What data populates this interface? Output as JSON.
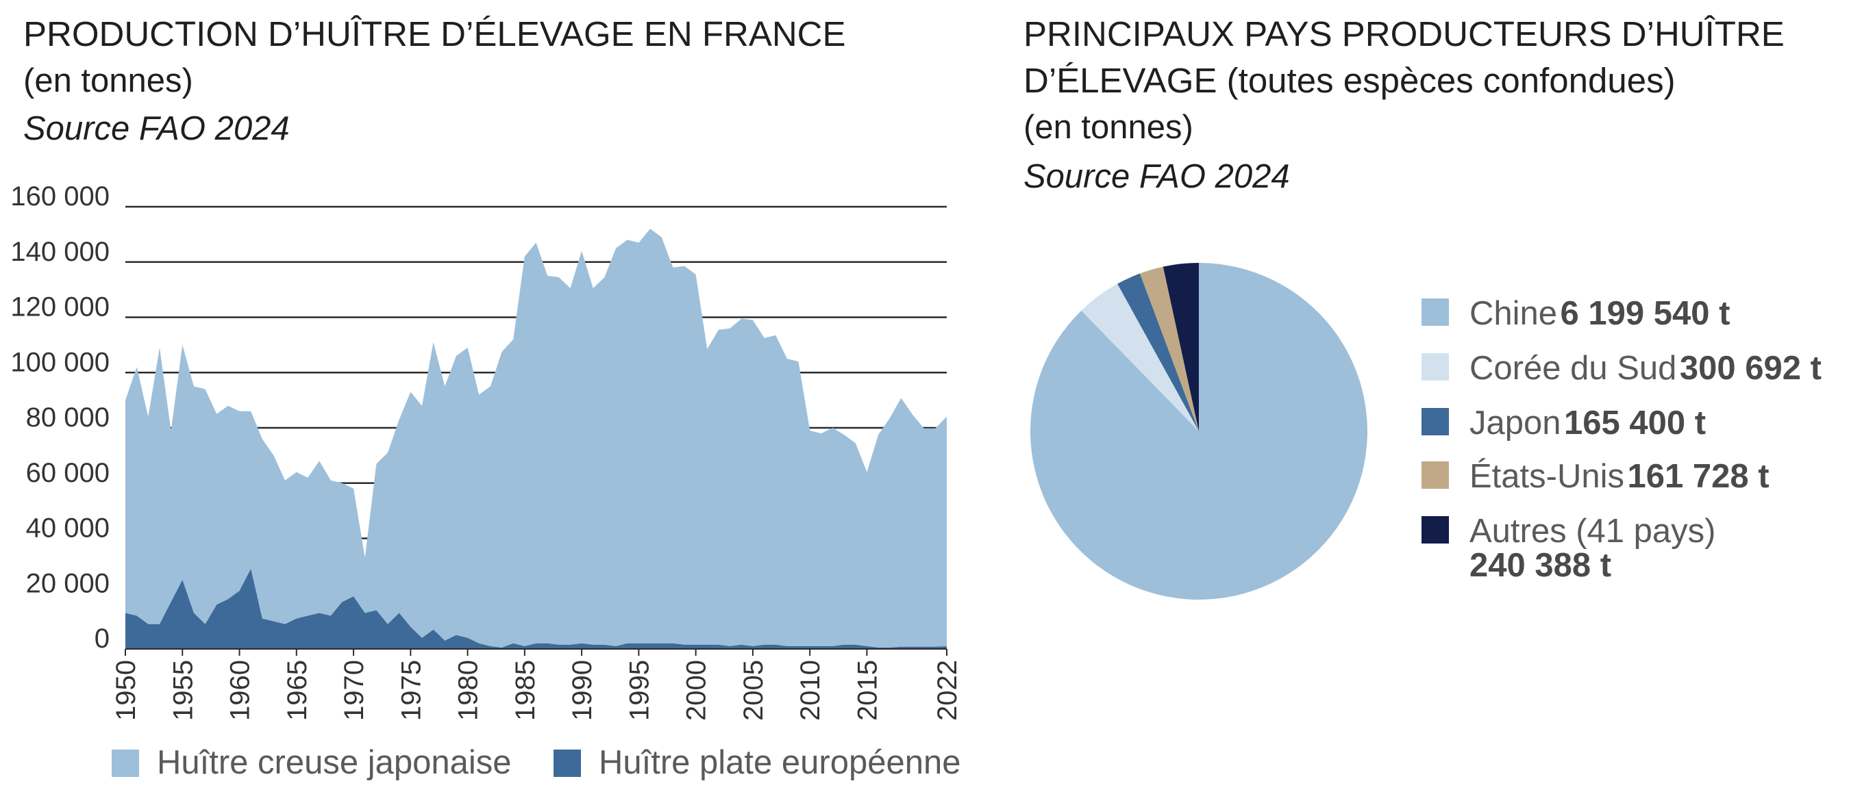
{
  "left": {
    "title": "PRODUCTION D’HUÎTRE D’ÉLEVAGE EN FRANCE",
    "subtitle": "(en tonnes)",
    "source": "Source FAO 2024"
  },
  "right": {
    "title_line1": "PRINCIPAUX PAYS PRODUCTEURS D’HUÎTRE",
    "title_line2": "D’ÉLEVAGE (toutes espèces confondues)",
    "subtitle": "(en tonnes)",
    "source": "Source FAO 2024"
  },
  "chart_data": [
    {
      "type": "area",
      "stacked": true,
      "ylim": [
        0,
        160000
      ],
      "yticks": [
        0,
        20000,
        40000,
        60000,
        80000,
        100000,
        120000,
        140000,
        160000
      ],
      "ytick_labels": [
        "0",
        "20 000",
        "40 000",
        "60 000",
        "80 000",
        "100 000",
        "120 000",
        "140 000",
        "160 000"
      ],
      "xlim": [
        1950,
        2022
      ],
      "xticks": [
        1950,
        1955,
        1960,
        1965,
        1970,
        1975,
        1980,
        1985,
        1990,
        1995,
        2000,
        2005,
        2010,
        2015,
        2022
      ],
      "xtick_labels": [
        "1950",
        "1955",
        "1960",
        "1965",
        "1970",
        "1975",
        "1980",
        "1985",
        "1990",
        "1995",
        "2000",
        "2005",
        "2010",
        "2015",
        "2022"
      ],
      "grid": true,
      "legend_position": "bottom",
      "x": [
        1950,
        1951,
        1952,
        1953,
        1954,
        1955,
        1956,
        1957,
        1958,
        1959,
        1960,
        1961,
        1962,
        1963,
        1964,
        1965,
        1966,
        1967,
        1968,
        1969,
        1970,
        1971,
        1972,
        1973,
        1974,
        1975,
        1976,
        1977,
        1978,
        1979,
        1980,
        1981,
        1982,
        1983,
        1984,
        1985,
        1986,
        1987,
        1988,
        1989,
        1990,
        1991,
        1992,
        1993,
        1994,
        1995,
        1996,
        1997,
        1998,
        1999,
        2000,
        2001,
        2002,
        2003,
        2004,
        2005,
        2006,
        2007,
        2008,
        2009,
        2010,
        2011,
        2012,
        2013,
        2014,
        2015,
        2016,
        2017,
        2018,
        2019,
        2020,
        2021,
        2022
      ],
      "series": [
        {
          "name": "Huître plate européenne",
          "color": "#3d6a99",
          "values": [
            13000,
            12000,
            9000,
            9000,
            17000,
            25000,
            13000,
            9000,
            16000,
            18000,
            21000,
            29000,
            11000,
            10000,
            9000,
            11000,
            12000,
            13000,
            12000,
            17000,
            19000,
            13000,
            14000,
            9000,
            13000,
            8000,
            4000,
            7000,
            3000,
            5000,
            4000,
            2000,
            1000,
            500,
            2000,
            1000,
            2000,
            2000,
            1500,
            1500,
            2000,
            1500,
            1500,
            1000,
            2000,
            2000,
            2000,
            2000,
            2000,
            1500,
            1500,
            1500,
            1500,
            1000,
            1500,
            1000,
            1500,
            1500,
            1000,
            1000,
            1000,
            1000,
            1000,
            1500,
            1500,
            1000,
            500,
            500,
            800,
            800,
            800,
            800,
            1000
          ]
        },
        {
          "name": "Huître creuse japonaise",
          "color": "#9dbfda",
          "values": [
            77000,
            90000,
            75000,
            100000,
            62000,
            85000,
            82000,
            85000,
            69000,
            70000,
            65000,
            57000,
            65000,
            60000,
            52000,
            53000,
            50000,
            55000,
            49000,
            43000,
            39000,
            20000,
            53000,
            62000,
            70000,
            85000,
            84000,
            104000,
            92000,
            101000,
            105000,
            90000,
            94000,
            107000,
            110000,
            141000,
            145000,
            133000,
            133000,
            129000,
            142000,
            129000,
            133000,
            144000,
            146000,
            145000,
            150000,
            147000,
            136000,
            137000,
            134000,
            107000,
            114000,
            115000,
            118000,
            118000,
            111000,
            112000,
            104000,
            103000,
            78000,
            77000,
            79000,
            76000,
            73000,
            63000,
            77000,
            83000,
            90000,
            84000,
            79000,
            79000,
            83000
          ]
        }
      ]
    },
    {
      "type": "pie",
      "unit": "t",
      "legend_position": "right",
      "slices": [
        {
          "label": "Chine",
          "value": 6199540,
          "value_label": "6 199 540 t",
          "color": "#9dbfda"
        },
        {
          "label": "Corée du Sud",
          "value": 300692,
          "value_label": "300 692 t",
          "color": "#d3e1ee"
        },
        {
          "label": "Japon",
          "value": 165400,
          "value_label": "165 400 t",
          "color": "#3d6a99"
        },
        {
          "label": "États-Unis",
          "value": 161728,
          "value_label": "161 728 t",
          "color": "#bfa987"
        },
        {
          "label": "Autres (41 pays)",
          "value": 240388,
          "value_label": "240 388 t",
          "color": "#121d4a"
        }
      ]
    }
  ]
}
